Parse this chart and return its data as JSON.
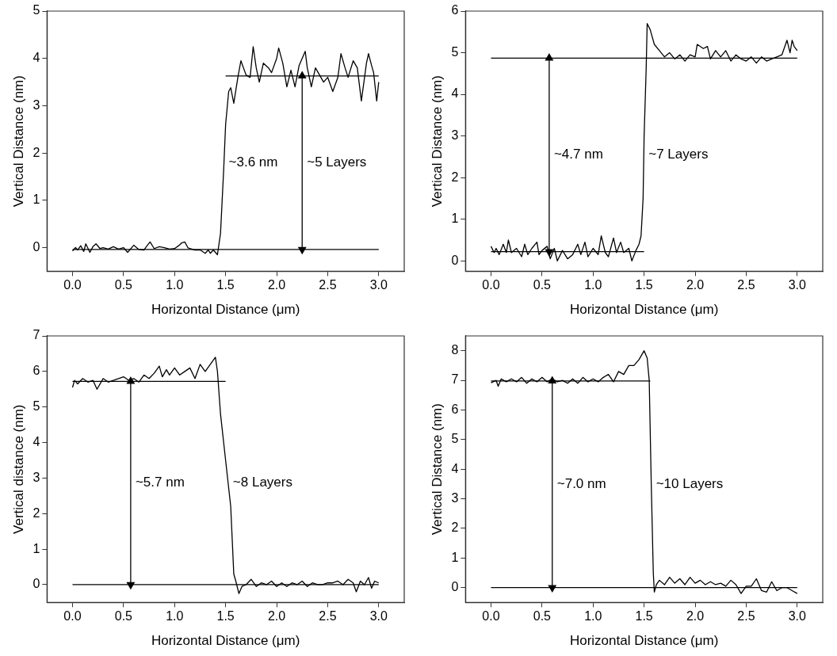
{
  "chart_data": [
    {
      "type": "line",
      "xlabel": "Horizontal Distance (μm)",
      "ylabel": "Vertical Distance (nm)",
      "xlim": [
        -0.25,
        3.25
      ],
      "ylim": [
        -0.5,
        5
      ],
      "xticks": [
        {
          "value": 0,
          "label": "0.0"
        },
        {
          "value": 0.5,
          "label": "0.5"
        },
        {
          "value": 1,
          "label": "1.0"
        },
        {
          "value": 1.5,
          "label": "1.5"
        },
        {
          "value": 2,
          "label": "2.0"
        },
        {
          "value": 2.5,
          "label": "2.5"
        },
        {
          "value": 3,
          "label": "3.0"
        }
      ],
      "yticks": [
        0,
        1,
        2,
        3,
        4,
        5
      ],
      "grid": false,
      "legend": false,
      "marker": "none",
      "series": [
        {
          "color": "#000000",
          "x": [
            0,
            0.03,
            0.05,
            0.08,
            0.11,
            0.13,
            0.17,
            0.2,
            0.23,
            0.27,
            0.3,
            0.35,
            0.4,
            0.45,
            0.5,
            0.54,
            0.6,
            0.65,
            0.7,
            0.73,
            0.76,
            0.8,
            0.85,
            0.9,
            0.95,
            1.0,
            1.04,
            1.07,
            1.1,
            1.13,
            1.15,
            1.2,
            1.25,
            1.3,
            1.33,
            1.35,
            1.38,
            1.42,
            1.45,
            1.48,
            1.5,
            1.53,
            1.55,
            1.58,
            1.62,
            1.65,
            1.7,
            1.74,
            1.77,
            1.8,
            1.83,
            1.87,
            1.92,
            1.95,
            2.0,
            2.02,
            2.06,
            2.1,
            2.14,
            2.18,
            2.22,
            2.25,
            2.28,
            2.3,
            2.34,
            2.38,
            2.42,
            2.46,
            2.5,
            2.55,
            2.6,
            2.63,
            2.67,
            2.7,
            2.75,
            2.79,
            2.83,
            2.88,
            2.9,
            2.93,
            2.95,
            2.98,
            3.0
          ],
          "values": [
            -0.07,
            0,
            -0.05,
            0.04,
            -0.08,
            0.08,
            -0.1,
            0.02,
            0.08,
            -0.02,
            0,
            -0.03,
            0.02,
            -0.03,
            0,
            -0.1,
            0.05,
            -0.04,
            -0.05,
            0.04,
            0.12,
            -0.02,
            0.02,
            0,
            -0.03,
            -0.02,
            0.04,
            0.1,
            0.12,
            0,
            -0.02,
            -0.05,
            -0.05,
            -0.12,
            -0.05,
            -0.12,
            -0.05,
            -0.15,
            0.3,
            1.6,
            2.6,
            3.3,
            3.38,
            3.05,
            3.6,
            3.95,
            3.65,
            3.6,
            4.25,
            3.8,
            3.5,
            3.9,
            3.8,
            3.7,
            4.0,
            4.22,
            3.9,
            3.4,
            3.75,
            3.4,
            3.85,
            4.0,
            4.15,
            3.8,
            3.4,
            3.8,
            3.65,
            3.5,
            3.6,
            3.3,
            3.6,
            4.1,
            3.8,
            3.6,
            3.95,
            3.8,
            3.1,
            3.9,
            4.1,
            3.85,
            3.7,
            3.1,
            3.5
          ]
        },
        {
          "color": "#000000",
          "x": [
            0,
            3
          ],
          "values": [
            -0.04,
            -0.04
          ]
        },
        {
          "color": "#000000",
          "x": [
            1.5,
            3
          ],
          "values": [
            3.63,
            3.63
          ]
        },
        {
          "color": "#000000",
          "x": [
            2.25,
            2.25
          ],
          "values": [
            -0.04,
            3.63
          ],
          "marker": "triangle"
        }
      ],
      "annotations": [
        "~3.6 nm",
        "~5 Layers"
      ]
    },
    {
      "type": "line",
      "xlabel": "Horizontal Distance (μm)",
      "ylabel": "Vertical Distance (nm)",
      "xlim": [
        -0.25,
        3.25
      ],
      "ylim": [
        -0.25,
        6
      ],
      "xticks": [
        {
          "value": 0,
          "label": "0.0"
        },
        {
          "value": 0.5,
          "label": "0.5"
        },
        {
          "value": 1,
          "label": "1.0"
        },
        {
          "value": 1.5,
          "label": "1.5"
        },
        {
          "value": 2,
          "label": "2.0"
        },
        {
          "value": 2.5,
          "label": "2.5"
        },
        {
          "value": 3,
          "label": "3.0"
        }
      ],
      "yticks": [
        0,
        1,
        2,
        3,
        4,
        5,
        6
      ],
      "grid": false,
      "legend": false,
      "marker": "none",
      "series": [
        {
          "color": "#000000",
          "x": [
            0,
            0.03,
            0.05,
            0.08,
            0.12,
            0.15,
            0.17,
            0.2,
            0.25,
            0.3,
            0.33,
            0.36,
            0.4,
            0.45,
            0.47,
            0.5,
            0.55,
            0.58,
            0.62,
            0.65,
            0.7,
            0.75,
            0.8,
            0.85,
            0.88,
            0.92,
            0.95,
            1.0,
            1.05,
            1.08,
            1.12,
            1.15,
            1.2,
            1.23,
            1.27,
            1.3,
            1.35,
            1.38,
            1.42,
            1.45,
            1.47,
            1.49,
            1.5,
            1.52,
            1.53,
            1.56,
            1.6,
            1.65,
            1.7,
            1.75,
            1.8,
            1.85,
            1.9,
            1.95,
            2.0,
            2.02,
            2.08,
            2.12,
            2.15,
            2.2,
            2.25,
            2.3,
            2.35,
            2.4,
            2.45,
            2.5,
            2.55,
            2.6,
            2.65,
            2.7,
            2.75,
            2.8,
            2.85,
            2.9,
            2.93,
            2.95,
            2.97,
            3.0
          ],
          "values": [
            0.35,
            0.2,
            0.3,
            0.15,
            0.4,
            0.2,
            0.5,
            0.2,
            0.3,
            0.1,
            0.4,
            0.15,
            0.3,
            0.45,
            0.15,
            0.25,
            0.35,
            0.05,
            0.3,
            0,
            0.25,
            0.05,
            0.15,
            0.4,
            0.15,
            0.45,
            0.1,
            0.3,
            0.15,
            0.6,
            0.2,
            0.1,
            0.55,
            0.2,
            0.45,
            0.2,
            0.3,
            0,
            0.25,
            0.4,
            0.6,
            1.5,
            3.0,
            4.6,
            5.7,
            5.55,
            5.2,
            5.05,
            4.9,
            5.0,
            4.85,
            4.95,
            4.8,
            4.95,
            4.9,
            5.2,
            5.1,
            5.15,
            4.85,
            5.05,
            4.9,
            5.05,
            4.8,
            4.95,
            4.85,
            4.8,
            4.9,
            4.75,
            4.9,
            4.8,
            4.85,
            4.9,
            4.95,
            5.3,
            5.0,
            5.3,
            5.15,
            5.05
          ]
        },
        {
          "color": "#000000",
          "x": [
            0,
            1.5
          ],
          "values": [
            0.22,
            0.22
          ]
        },
        {
          "color": "#000000",
          "x": [
            0,
            3
          ],
          "values": [
            4.87,
            4.87
          ]
        },
        {
          "color": "#000000",
          "x": [
            0.57,
            0.57
          ],
          "values": [
            0.22,
            4.87
          ],
          "marker": "triangle"
        }
      ],
      "annotations": [
        "~4.7 nm",
        "~7 Layers"
      ]
    },
    {
      "type": "line",
      "xlabel": "Horizontal Distance (μm)",
      "ylabel": "Vertical distance (nm)",
      "xlim": [
        -0.25,
        3.25
      ],
      "ylim": [
        -0.5,
        7
      ],
      "xticks": [
        {
          "value": 0,
          "label": "0.0"
        },
        {
          "value": 0.5,
          "label": "0.5"
        },
        {
          "value": 1,
          "label": "1.0"
        },
        {
          "value": 1.5,
          "label": "1.5"
        },
        {
          "value": 2,
          "label": "2.0"
        },
        {
          "value": 2.5,
          "label": "2.5"
        },
        {
          "value": 3,
          "label": "3.0"
        }
      ],
      "yticks": [
        0,
        1,
        2,
        3,
        4,
        5,
        6,
        7
      ],
      "grid": false,
      "legend": false,
      "marker": "none",
      "series": [
        {
          "color": "#000000",
          "x": [
            0,
            0.02,
            0.05,
            0.1,
            0.15,
            0.2,
            0.24,
            0.3,
            0.35,
            0.4,
            0.45,
            0.5,
            0.55,
            0.6,
            0.65,
            0.7,
            0.75,
            0.8,
            0.85,
            0.88,
            0.92,
            0.95,
            1.0,
            1.05,
            1.1,
            1.15,
            1.2,
            1.25,
            1.3,
            1.35,
            1.4,
            1.42,
            1.45,
            1.5,
            1.55,
            1.58,
            1.6,
            1.63,
            1.66,
            1.7,
            1.75,
            1.8,
            1.85,
            1.9,
            1.95,
            2.0,
            2.05,
            2.1,
            2.15,
            2.2,
            2.25,
            2.3,
            2.35,
            2.4,
            2.45,
            2.5,
            2.55,
            2.6,
            2.65,
            2.7,
            2.75,
            2.78,
            2.82,
            2.86,
            2.9,
            2.93,
            2.96,
            3.0
          ],
          "values": [
            5.55,
            5.75,
            5.65,
            5.8,
            5.7,
            5.75,
            5.5,
            5.8,
            5.7,
            5.75,
            5.8,
            5.85,
            5.75,
            5.8,
            5.7,
            5.9,
            5.8,
            5.95,
            6.15,
            5.85,
            6.05,
            5.9,
            6.1,
            5.9,
            6.0,
            6.1,
            5.8,
            6.2,
            6.0,
            6.2,
            6.4,
            6.0,
            4.8,
            3.5,
            2.2,
            0.3,
            0.1,
            -0.25,
            -0.05,
            0,
            0.15,
            -0.05,
            0.05,
            0,
            0.1,
            -0.05,
            0.05,
            -0.05,
            0.05,
            0,
            0.1,
            -0.05,
            0.05,
            0,
            0,
            0.05,
            0.05,
            0.1,
            0,
            0.15,
            0.05,
            -0.2,
            0.1,
            0,
            0.2,
            -0.1,
            0.1,
            0.05
          ]
        },
        {
          "color": "#000000",
          "x": [
            0,
            1.5
          ],
          "values": [
            5.72,
            5.72
          ]
        },
        {
          "color": "#000000",
          "x": [
            0,
            3
          ],
          "values": [
            0,
            0
          ]
        },
        {
          "color": "#000000",
          "x": [
            0.57,
            0.57
          ],
          "values": [
            0,
            5.72
          ],
          "marker": "triangle"
        }
      ],
      "annotations": [
        "~5.7 nm",
        "~8 Layers"
      ]
    },
    {
      "type": "line",
      "xlabel": "Horizontal Distance (μm)",
      "ylabel": "Vertical Distance (nm)",
      "xlim": [
        -0.25,
        3.25
      ],
      "ylim": [
        -0.5,
        8.5
      ],
      "xticks": [
        {
          "value": 0,
          "label": "0.0"
        },
        {
          "value": 0.5,
          "label": "0.5"
        },
        {
          "value": 1,
          "label": "1.0"
        },
        {
          "value": 1.5,
          "label": "1.5"
        },
        {
          "value": 2,
          "label": "2.0"
        },
        {
          "value": 2.5,
          "label": "2.5"
        },
        {
          "value": 3,
          "label": "3.0"
        }
      ],
      "yticks": [
        0,
        1,
        2,
        3,
        4,
        5,
        6,
        7,
        8
      ],
      "grid": false,
      "legend": false,
      "marker": "none",
      "series": [
        {
          "color": "#000000",
          "x": [
            0,
            0.05,
            0.07,
            0.1,
            0.15,
            0.2,
            0.25,
            0.3,
            0.35,
            0.4,
            0.45,
            0.5,
            0.55,
            0.6,
            0.65,
            0.7,
            0.75,
            0.8,
            0.85,
            0.9,
            0.95,
            1.0,
            1.05,
            1.1,
            1.15,
            1.2,
            1.25,
            1.3,
            1.35,
            1.4,
            1.45,
            1.5,
            1.53,
            1.55,
            1.57,
            1.59,
            1.6,
            1.62,
            1.65,
            1.7,
            1.75,
            1.8,
            1.85,
            1.9,
            1.95,
            2.0,
            2.05,
            2.1,
            2.15,
            2.2,
            2.25,
            2.3,
            2.35,
            2.4,
            2.45,
            2.5,
            2.55,
            2.6,
            2.65,
            2.7,
            2.75,
            2.8,
            2.85,
            2.9,
            2.95,
            3.0
          ],
          "values": [
            6.92,
            7.0,
            6.8,
            7.05,
            6.95,
            7.05,
            6.95,
            7.1,
            6.9,
            7.05,
            6.95,
            7.1,
            6.95,
            7.05,
            6.95,
            7.0,
            6.9,
            7.05,
            6.9,
            7.1,
            6.95,
            7.05,
            6.95,
            7.1,
            7.2,
            6.95,
            7.3,
            7.2,
            7.5,
            7.5,
            7.7,
            8.0,
            7.75,
            7.0,
            3.5,
            0.5,
            -0.15,
            0.1,
            0.25,
            0.1,
            0.35,
            0.15,
            0.3,
            0.1,
            0.35,
            0.15,
            0.25,
            0.1,
            0.2,
            0.1,
            0.15,
            0.05,
            0.25,
            0.1,
            -0.2,
            0.05,
            0.05,
            0.3,
            -0.1,
            -0.15,
            0.2,
            -0.1,
            0,
            0,
            -0.1,
            -0.2
          ]
        },
        {
          "color": "#000000",
          "x": [
            0,
            1.56
          ],
          "values": [
            6.98,
            6.98
          ]
        },
        {
          "color": "#000000",
          "x": [
            0,
            3
          ],
          "values": [
            0,
            0
          ]
        },
        {
          "color": "#000000",
          "x": [
            0.6,
            0.6
          ],
          "values": [
            0,
            6.98
          ],
          "marker": "triangle"
        }
      ],
      "annotations": [
        "~7.0 nm",
        "~10 Layers"
      ]
    }
  ]
}
